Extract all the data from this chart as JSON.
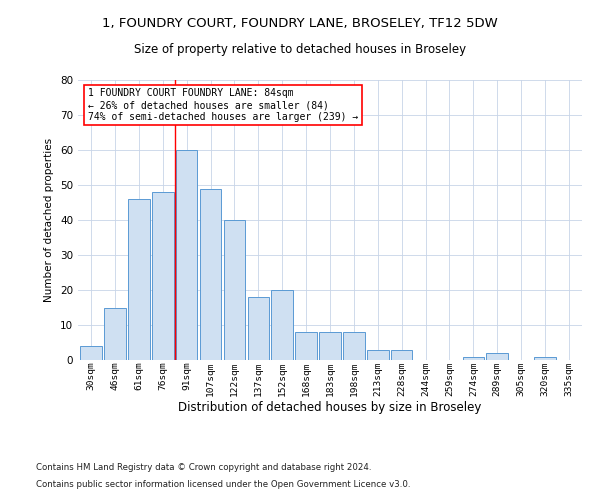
{
  "title": "1, FOUNDRY COURT, FOUNDRY LANE, BROSELEY, TF12 5DW",
  "subtitle": "Size of property relative to detached houses in Broseley",
  "xlabel": "Distribution of detached houses by size in Broseley",
  "ylabel": "Number of detached properties",
  "categories": [
    "30sqm",
    "46sqm",
    "61sqm",
    "76sqm",
    "91sqm",
    "107sqm",
    "122sqm",
    "137sqm",
    "152sqm",
    "168sqm",
    "183sqm",
    "198sqm",
    "213sqm",
    "228sqm",
    "244sqm",
    "259sqm",
    "274sqm",
    "289sqm",
    "305sqm",
    "320sqm",
    "335sqm"
  ],
  "values": [
    4,
    15,
    46,
    48,
    60,
    49,
    40,
    18,
    20,
    8,
    8,
    8,
    3,
    3,
    0,
    0,
    1,
    2,
    0,
    1,
    0
  ],
  "bar_color": "#cfe0f2",
  "bar_edge_color": "#5a9ad4",
  "ylim": [
    0,
    80
  ],
  "yticks": [
    0,
    10,
    20,
    30,
    40,
    50,
    60,
    70,
    80
  ],
  "red_line_x": 3.5,
  "annotation_line1": "1 FOUNDRY COURT FOUNDRY LANE: 84sqm",
  "annotation_line2": "← 26% of detached houses are smaller (84)",
  "annotation_line3": "74% of semi-detached houses are larger (239) →",
  "footnote1": "Contains HM Land Registry data © Crown copyright and database right 2024.",
  "footnote2": "Contains public sector information licensed under the Open Government Licence v3.0.",
  "background_color": "#ffffff",
  "grid_color": "#c8d4e8"
}
